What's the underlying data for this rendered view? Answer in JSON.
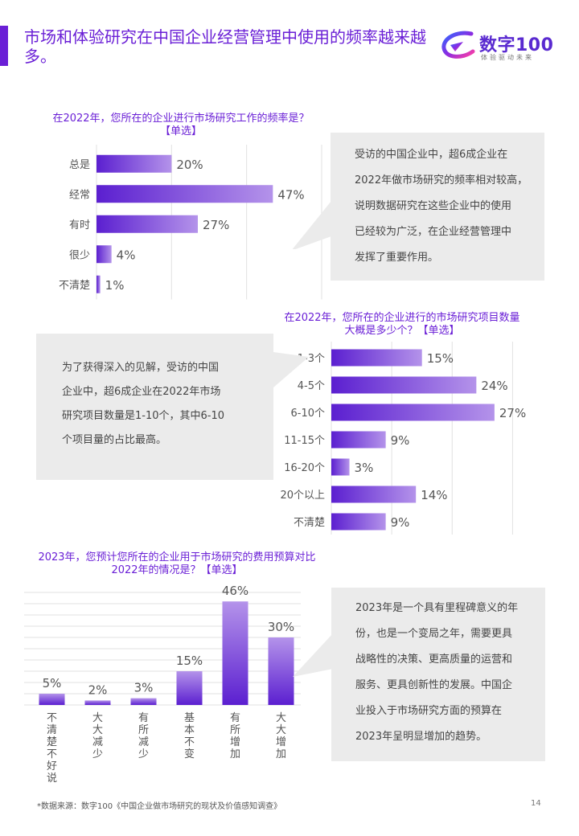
{
  "header": {
    "title": "市场和体验研究在中国企业经营管理中使用的频率越来越多。",
    "logo_text": "数字100",
    "logo_sub": "体验驱动未来"
  },
  "colors": {
    "accent": "#6a1fd6",
    "bar_start": "#5b1fd0",
    "bar_end": "#b493ea",
    "callout_bg": "#ebebeb"
  },
  "chart_data": [
    {
      "type": "bar",
      "orientation": "horizontal",
      "title": "在2022年，您所在的企业进行市场研究工作的频率是？【单选】",
      "categories": [
        "总是",
        "经常",
        "有时",
        "很少",
        "不清楚"
      ],
      "values": [
        20,
        47,
        27,
        4,
        1
      ],
      "value_labels": [
        "20%",
        "47%",
        "27%",
        "4%",
        "1%"
      ],
      "unit": "%",
      "xlim": [
        0,
        60
      ],
      "grid": true
    },
    {
      "type": "bar",
      "orientation": "horizontal",
      "title": "在2022年，您所在的企业进行的市场研究项目数量大概是多少个？【单选】",
      "categories": [
        "1-3个",
        "4-5个",
        "6-10个",
        "11-15个",
        "16-20个",
        "20个以上",
        "不清楚"
      ],
      "values": [
        15,
        24,
        27,
        9,
        3,
        14,
        9
      ],
      "value_labels": [
        "15%",
        "24%",
        "27%",
        "9%",
        "3%",
        "14%",
        "9%"
      ],
      "unit": "%",
      "xlim": [
        0,
        35
      ],
      "grid": true
    },
    {
      "type": "bar",
      "orientation": "vertical",
      "title": "2023年，您预计您所在的企业用于市场研究的费用预算对比2022年的情况是？【单选】",
      "categories": [
        "不清楚不好说",
        "大大减少",
        "有所减少",
        "基本不变",
        "有所增加",
        "大大增加"
      ],
      "values": [
        5,
        2,
        3,
        15,
        46,
        30
      ],
      "value_labels": [
        "5%",
        "2%",
        "3%",
        "15%",
        "46%",
        "30%"
      ],
      "unit": "%",
      "ylim": [
        0,
        50
      ],
      "grid": true
    }
  ],
  "chart_titles": {
    "c1_line1": "在2022年，您所在的企业进行市场研究工作的频率是？",
    "c1_line2": "【单选】",
    "c2_line1": "在2022年，您所在的企业进行的市场研究项目数量",
    "c2_line2": "大概是多少个？【单选】",
    "c3_line1": "2023年，您预计您所在的企业用于市场研究的费用预算对比",
    "c3_line2": "2022年的情况是？【单选】"
  },
  "callouts": {
    "c1": [
      "受访的中国企业中，超6成企业在",
      "2022年做市场研究的频率相对较高，",
      "说明数据研究在这些企业中的使用",
      "已经较为广泛，在企业经营管理中",
      "发挥了重要作用。"
    ],
    "c2": [
      "为了获得深入的见解，受访的中国",
      "企业中，超6成企业在2022年市场",
      "研究项目数量是1-10个，其中6-10",
      "个项目量的占比最高。"
    ],
    "c3": [
      "2023年是一个具有里程碑意义的年",
      "份，也是一个变局之年，需要更具",
      "战略性的决策、更高质量的运营和",
      "服务、更具创新性的发展。中国企",
      "业投入于市场研究方面的预算在",
      "2023年呈明显增加的趋势。"
    ]
  },
  "footer": {
    "source": "*数据来源：数字100《中国企业做市场研究的现状及价值感知调查》",
    "page": "14"
  }
}
